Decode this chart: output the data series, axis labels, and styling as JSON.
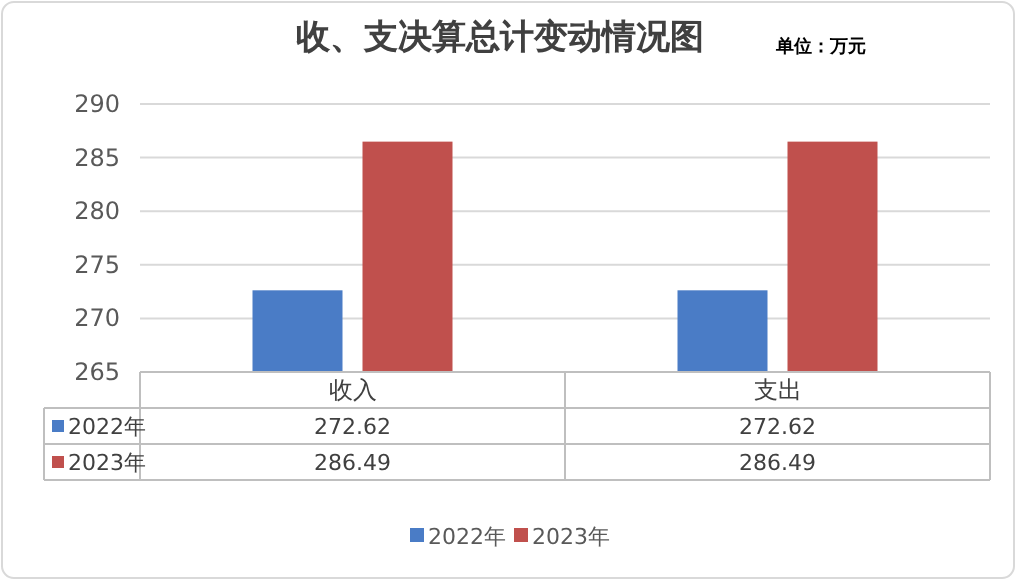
{
  "chart_data": {
    "type": "bar",
    "title": "收、支决算总计变动情况图",
    "annotations": [
      "单位：万元"
    ],
    "categories": [
      "收入",
      "支出"
    ],
    "series": [
      {
        "name": "2022年",
        "color": "#4a7cc6",
        "values": [
          272.62,
          272.62
        ]
      },
      {
        "name": "2023年",
        "color": "#c0504d",
        "values": [
          286.49,
          286.49
        ]
      }
    ],
    "ylim": [
      265,
      290
    ],
    "yticks": [
      265,
      270,
      275,
      280,
      285,
      290
    ],
    "grid": "y",
    "legend": "bottom",
    "data_labels": true
  }
}
